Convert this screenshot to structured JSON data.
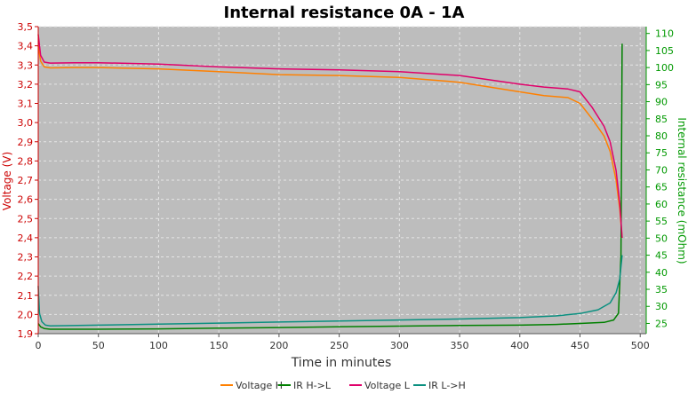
{
  "chart_data": {
    "type": "line",
    "title": "Internal resistance  0A - 1A",
    "xlabel": "Time in minutes",
    "ylabel_left": "Voltage (V)",
    "ylabel_right": "Internal resistance (mOhm)",
    "xlim": [
      0,
      505
    ],
    "ylim_left": [
      1.9,
      3.5
    ],
    "ylim_right": [
      22,
      112
    ],
    "x_ticks": [
      0,
      50,
      100,
      150,
      200,
      250,
      300,
      350,
      400,
      450,
      500
    ],
    "y_left_ticks": [
      "1,9",
      "2,0",
      "2,1",
      "2,2",
      "2,3",
      "2,4",
      "2,5",
      "2,6",
      "2,7",
      "2,8",
      "2,9",
      "3,0",
      "3,1",
      "3,2",
      "3,3",
      "3,4",
      "3,5"
    ],
    "y_right_ticks": [
      25,
      30,
      35,
      40,
      45,
      50,
      55,
      60,
      65,
      70,
      75,
      80,
      85,
      90,
      95,
      100,
      105,
      110
    ],
    "grid": true,
    "legend_position": "bottom",
    "colors": {
      "plot_bg": "#bdbdbd",
      "grid": "#e6e6e6",
      "left_axis": "#cc0000",
      "right_axis": "#009900"
    },
    "series": [
      {
        "name": "Voltage H",
        "axis": "left",
        "color": "#ff8000",
        "x": [
          0,
          2,
          5,
          10,
          30,
          50,
          100,
          150,
          200,
          250,
          300,
          350,
          400,
          420,
          440,
          450,
          460,
          470,
          475,
          480,
          483,
          485
        ],
        "y": [
          3.4,
          3.32,
          3.29,
          3.285,
          3.287,
          3.287,
          3.28,
          3.265,
          3.25,
          3.245,
          3.235,
          3.21,
          3.16,
          3.14,
          3.13,
          3.1,
          3.02,
          2.93,
          2.85,
          2.7,
          2.55,
          2.4
        ]
      },
      {
        "name": "IR H->L",
        "axis": "right",
        "color": "#008000",
        "x": [
          0,
          2,
          5,
          10,
          50,
          100,
          150,
          200,
          250,
          300,
          350,
          400,
          430,
          450,
          470,
          478,
          482,
          484,
          485
        ],
        "y": [
          25,
          24,
          23.5,
          23.3,
          23.3,
          23.4,
          23.6,
          23.8,
          24,
          24.2,
          24.4,
          24.5,
          24.7,
          25,
          25.3,
          26,
          28,
          45,
          107
        ]
      },
      {
        "name": "Voltage L",
        "axis": "left",
        "color": "#e0006a",
        "x": [
          0,
          2,
          5,
          10,
          30,
          50,
          100,
          150,
          200,
          250,
          300,
          350,
          400,
          420,
          440,
          450,
          460,
          470,
          475,
          480,
          483,
          485
        ],
        "y": [
          3.46,
          3.35,
          3.315,
          3.31,
          3.312,
          3.312,
          3.305,
          3.29,
          3.28,
          3.275,
          3.265,
          3.245,
          3.2,
          3.185,
          3.175,
          3.16,
          3.08,
          2.98,
          2.9,
          2.75,
          2.58,
          2.4
        ]
      },
      {
        "name": "IR L->H",
        "axis": "right",
        "color": "#0a9080",
        "x": [
          0,
          1,
          3,
          6,
          10,
          50,
          100,
          150,
          200,
          250,
          300,
          350,
          400,
          430,
          450,
          465,
          475,
          480,
          483,
          485
        ],
        "y": [
          36,
          28,
          25.5,
          24.5,
          24.3,
          24.5,
          24.8,
          25.1,
          25.4,
          25.7,
          26.0,
          26.3,
          26.7,
          27.2,
          27.9,
          29,
          31,
          34,
          38,
          45
        ]
      }
    ]
  }
}
